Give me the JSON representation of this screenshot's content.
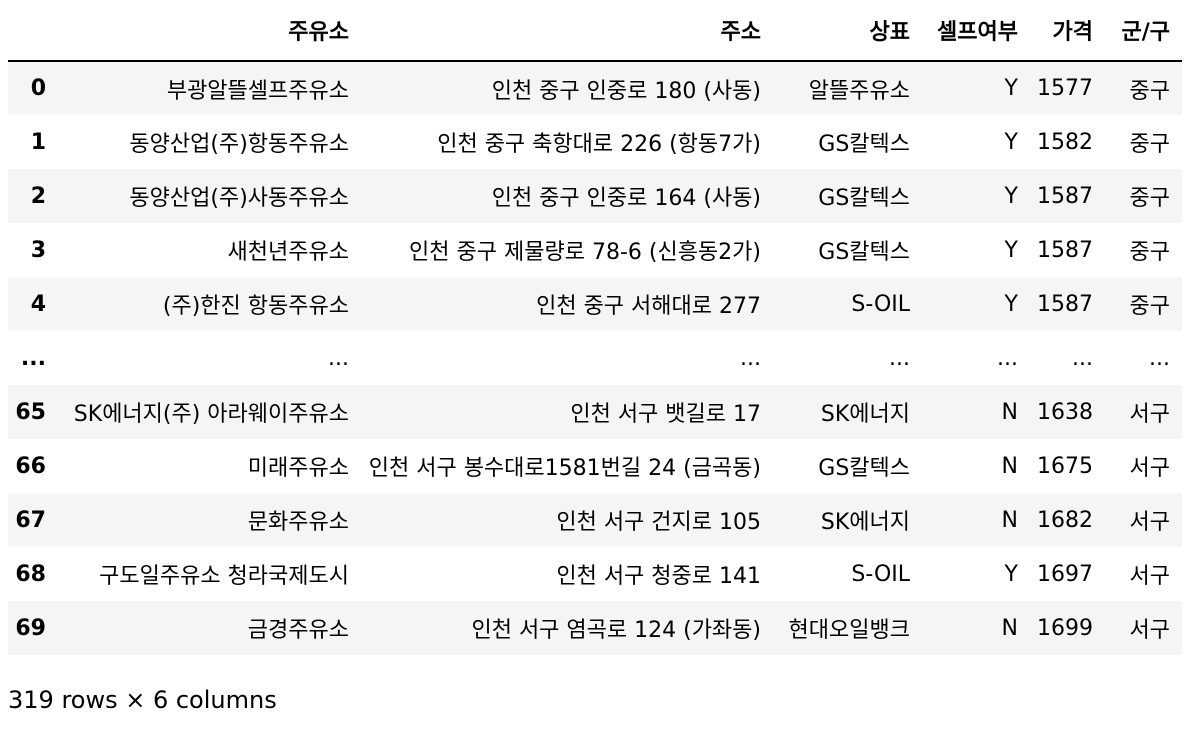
{
  "table": {
    "columns": [
      "",
      "주유소",
      "주소",
      "상표",
      "셀프여부",
      "가격",
      "군/구"
    ],
    "rows": [
      [
        "0",
        "부광알뜰셀프주유소",
        "인천 중구 인중로 180 (사동)",
        "알뜰주유소",
        "Y",
        "1577",
        "중구"
      ],
      [
        "1",
        "동양산업(주)항동주유소",
        "인천 중구 축항대로 226 (항동7가)",
        "GS칼텍스",
        "Y",
        "1582",
        "중구"
      ],
      [
        "2",
        "동양산업(주)사동주유소",
        "인천 중구 인중로 164 (사동)",
        "GS칼텍스",
        "Y",
        "1587",
        "중구"
      ],
      [
        "3",
        "새천년주유소",
        "인천 중구 제물량로 78-6 (신흥동2가)",
        "GS칼텍스",
        "Y",
        "1587",
        "중구"
      ],
      [
        "4",
        "(주)한진 항동주유소",
        "인천 중구 서해대로 277",
        "S-OIL",
        "Y",
        "1587",
        "중구"
      ],
      [
        "...",
        "...",
        "...",
        "...",
        "...",
        "...",
        "..."
      ],
      [
        "65",
        "SK에너지(주) 아라웨이주유소",
        "인천 서구 뱃길로 17",
        "SK에너지",
        "N",
        "1638",
        "서구"
      ],
      [
        "66",
        "미래주유소",
        "인천 서구 봉수대로1581번길 24 (금곡동)",
        "GS칼텍스",
        "N",
        "1675",
        "서구"
      ],
      [
        "67",
        "문화주유소",
        "인천 서구 건지로 105",
        "SK에너지",
        "N",
        "1682",
        "서구"
      ],
      [
        "68",
        "구도일주유소 청라국제도시",
        "인천 서구 청중로 141",
        "S-OIL",
        "Y",
        "1697",
        "서구"
      ],
      [
        "69",
        "금경주유소",
        "인천 서구 염곡로 124 (가좌동)",
        "현대오일뱅크",
        "N",
        "1699",
        "서구"
      ]
    ]
  },
  "footer": {
    "summary": "319 rows × 6 columns"
  }
}
